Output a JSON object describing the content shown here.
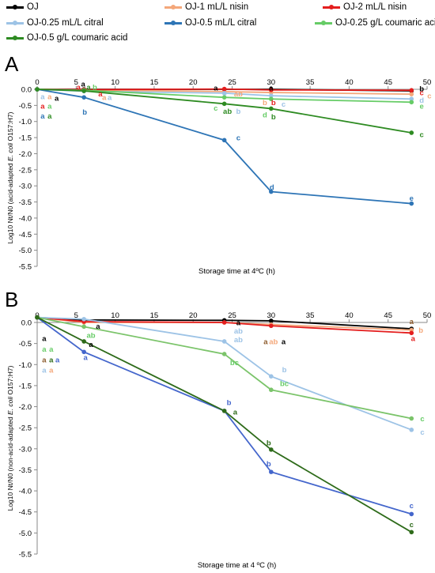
{
  "legend": [
    {
      "name": "OJ",
      "color": "#000000"
    },
    {
      "name": "OJ-1 mL/L nisin",
      "color": "#f4a77a"
    },
    {
      "name": "OJ-2 mL/L nisin",
      "color": "#e41e1e"
    },
    {
      "name": "OJ-0.25 mL/L citral",
      "color": "#9dc3e6"
    },
    {
      "name": "OJ-0.5 mL/L citral",
      "color": "#2e75b6"
    },
    {
      "name": "OJ-0.25 g/L coumaric acid",
      "color": "#66cc66"
    },
    {
      "name": "OJ-0.5 g/L coumaric acid",
      "color": "#2e8b22"
    }
  ],
  "chart_data": [
    {
      "type": "line",
      "panel_label": "A",
      "xlabel": "Storage time at 4ºC (h)",
      "ylabel_parts": [
        "Log10 Nt/N0 (acid-adapted ",
        "E. coli",
        " O157:H7)"
      ],
      "xlim": [
        0,
        50
      ],
      "ylim": [
        -5.5,
        0
      ],
      "xticks": [
        0,
        5,
        10,
        15,
        20,
        25,
        30,
        35,
        40,
        45,
        50
      ],
      "yticks": [
        0.0,
        -0.5,
        -1.0,
        -1.5,
        -2.0,
        -2.5,
        -3.0,
        -3.5,
        -4.0,
        -4.5,
        -5.0,
        -5.5
      ],
      "x": [
        0,
        6,
        24,
        30,
        48
      ],
      "series": [
        {
          "name": "OJ",
          "color": "#000000",
          "values": [
            0.0,
            0.0,
            0.0,
            0.0,
            -0.05
          ]
        },
        {
          "name": "OJ-1 mL/L nisin",
          "color": "#f4a77a",
          "values": [
            0.0,
            -0.02,
            -0.07,
            -0.1,
            -0.15
          ]
        },
        {
          "name": "OJ-2 mL/L nisin",
          "color": "#e41e1e",
          "values": [
            0.0,
            -0.01,
            0.01,
            -0.02,
            -0.03
          ]
        },
        {
          "name": "OJ-0.25 mL/L citral",
          "color": "#9dc3e6",
          "values": [
            0.0,
            -0.06,
            -0.12,
            -0.2,
            -0.3
          ]
        },
        {
          "name": "OJ-0.5 mL/L citral",
          "color": "#2e75b6",
          "values": [
            0.0,
            -0.25,
            -1.58,
            -3.18,
            -3.55
          ]
        },
        {
          "name": "OJ-0.25 g/L coumaric acid",
          "color": "#66cc66",
          "values": [
            0.0,
            -0.03,
            -0.25,
            -0.3,
            -0.4
          ]
        },
        {
          "name": "OJ-0.5 g/L coumaric acid",
          "color": "#2e8b22",
          "values": [
            0.0,
            -0.05,
            -0.45,
            -0.6,
            -1.35
          ]
        }
      ],
      "annotations": [
        {
          "x": 0.7,
          "y": -0.22,
          "text": "a",
          "color": "#9dc3e6"
        },
        {
          "x": 1.6,
          "y": -0.22,
          "text": "a",
          "color": "#f4a77a"
        },
        {
          "x": 2.5,
          "y": -0.27,
          "text": "a",
          "color": "#000000"
        },
        {
          "x": 0.7,
          "y": -0.52,
          "text": "a",
          "color": "#e41e1e"
        },
        {
          "x": 1.6,
          "y": -0.52,
          "text": "a",
          "color": "#66cc66"
        },
        {
          "x": 0.7,
          "y": -0.82,
          "text": "a",
          "color": "#2e75b6"
        },
        {
          "x": 1.6,
          "y": -0.82,
          "text": "a",
          "color": "#2e8b22"
        },
        {
          "x": 5.9,
          "y": 0.17,
          "text": "a",
          "color": "#000000"
        },
        {
          "x": 5.3,
          "y": 0.07,
          "text": "a",
          "color": "#e41e1e"
        },
        {
          "x": 6.6,
          "y": 0.07,
          "text": "a",
          "color": "#2e8b22"
        },
        {
          "x": 7.4,
          "y": 0.07,
          "text": "b",
          "color": "#66cc66"
        },
        {
          "x": 8.1,
          "y": -0.13,
          "text": "a",
          "color": "#e41e1e"
        },
        {
          "x": 8.6,
          "y": -0.25,
          "text": "a",
          "color": "#f4a77a"
        },
        {
          "x": 9.3,
          "y": -0.25,
          "text": "a",
          "color": "#9dc3e6"
        },
        {
          "x": 6.1,
          "y": -0.7,
          "text": "b",
          "color": "#2e75b6"
        },
        {
          "x": 22.9,
          "y": 0.05,
          "text": "a",
          "color": "#000000"
        },
        {
          "x": 24.0,
          "y": -0.1,
          "text": "a",
          "color": "#9dc3e6"
        },
        {
          "x": 25.8,
          "y": -0.13,
          "text": "ab",
          "color": "#f4a77a"
        },
        {
          "x": 22.9,
          "y": -0.58,
          "text": "c",
          "color": "#66cc66"
        },
        {
          "x": 24.4,
          "y": -0.68,
          "text": "ab",
          "color": "#2e8b22"
        },
        {
          "x": 25.8,
          "y": -0.68,
          "text": "b",
          "color": "#9dc3e6"
        },
        {
          "x": 25.8,
          "y": -1.5,
          "text": "c",
          "color": "#2e75b6"
        },
        {
          "x": 30.0,
          "y": 0.05,
          "text": "a",
          "color": "#000000"
        },
        {
          "x": 29.2,
          "y": -0.4,
          "text": "b",
          "color": "#f4a77a"
        },
        {
          "x": 30.3,
          "y": -0.4,
          "text": "b",
          "color": "#e41e1e"
        },
        {
          "x": 31.6,
          "y": -0.46,
          "text": "c",
          "color": "#9dc3e6"
        },
        {
          "x": 29.2,
          "y": -0.78,
          "text": "d",
          "color": "#66cc66"
        },
        {
          "x": 30.3,
          "y": -0.85,
          "text": "b",
          "color": "#2e8b22"
        },
        {
          "x": 30.1,
          "y": -3.03,
          "text": "d",
          "color": "#2e75b6"
        },
        {
          "x": 49.3,
          "y": 0.02,
          "text": "b",
          "color": "#000000"
        },
        {
          "x": 49.3,
          "y": -0.1,
          "text": "c",
          "color": "#e41e1e"
        },
        {
          "x": 50.3,
          "y": -0.2,
          "text": "c",
          "color": "#f4a77a"
        },
        {
          "x": 49.3,
          "y": -0.33,
          "text": "d",
          "color": "#9dc3e6"
        },
        {
          "x": 49.3,
          "y": -0.52,
          "text": "e",
          "color": "#66cc66"
        },
        {
          "x": 49.3,
          "y": -1.4,
          "text": "c",
          "color": "#2e8b22"
        },
        {
          "x": 48.0,
          "y": -3.38,
          "text": "e",
          "color": "#2e75b6"
        }
      ]
    },
    {
      "type": "line",
      "panel_label": "B",
      "xlabel": "Storage time at 4 ºC (h)",
      "ylabel_parts": [
        "Log10 Nt/N0 (non-acid-adapted ",
        "E. coli",
        " O157:H7)"
      ],
      "xlim": [
        0,
        50
      ],
      "ylim": [
        -5.5,
        0
      ],
      "xticks": [
        0,
        5,
        10,
        15,
        20,
        25,
        30,
        35,
        40,
        45,
        50
      ],
      "yticks": [
        0.0,
        -0.5,
        -1.0,
        -1.5,
        -2.0,
        -2.5,
        -3.0,
        -3.5,
        -4.0,
        -4.5,
        -5.0,
        -5.5
      ],
      "x": [
        0,
        6,
        24,
        30,
        48
      ],
      "series": [
        {
          "name": "OJ",
          "color": "#000000",
          "values": [
            0.12,
            0.06,
            0.05,
            0.04,
            -0.15
          ]
        },
        {
          "name": "OJ-1 mL/L nisin",
          "color": "#f4a77a",
          "values": [
            0.12,
            0.0,
            0.0,
            -0.05,
            -0.18
          ]
        },
        {
          "name": "OJ-2 mL/L nisin",
          "color": "#e41e1e",
          "values": [
            0.12,
            0.02,
            0.0,
            -0.08,
            -0.25
          ]
        },
        {
          "name": "OJ-0.25 mL/L citral",
          "color": "#9dc3e6",
          "values": [
            0.12,
            0.08,
            -0.45,
            -1.28,
            -2.55
          ]
        },
        {
          "name": "OJ-0.5 mL/L citral",
          "color": "#4466cc",
          "values": [
            0.12,
            -0.7,
            -2.1,
            -3.55,
            -4.55
          ]
        },
        {
          "name": "OJ-0.25 g/L coumaric acid",
          "color": "#7bc46a",
          "values": [
            0.12,
            -0.1,
            -0.75,
            -1.6,
            -2.28
          ]
        },
        {
          "name": "OJ-0.5 g/L coumaric acid",
          "color": "#2e6b1a",
          "values": [
            0.12,
            -0.45,
            -2.1,
            -3.02,
            -4.98
          ]
        }
      ],
      "annotations": [
        {
          "x": 0.9,
          "y": -0.38,
          "text": "a",
          "color": "#000000"
        },
        {
          "x": 0.9,
          "y": -0.63,
          "text": "a",
          "color": "#66cc66"
        },
        {
          "x": 1.8,
          "y": -0.63,
          "text": "a",
          "color": "#66cc66"
        },
        {
          "x": 0.9,
          "y": -0.88,
          "text": "a",
          "color": "#8b5a2b"
        },
        {
          "x": 1.8,
          "y": -0.88,
          "text": "a",
          "color": "#2e6b1a"
        },
        {
          "x": 0.9,
          "y": -0.88,
          "text": "",
          "color": "#000000"
        },
        {
          "x": 2.6,
          "y": -0.88,
          "text": "a",
          "color": "#4466cc"
        },
        {
          "x": 0.9,
          "y": -1.13,
          "text": "a",
          "color": "#9dc3e6"
        },
        {
          "x": 1.8,
          "y": -1.13,
          "text": "a",
          "color": "#f4a77a"
        },
        {
          "x": 7.8,
          "y": -0.08,
          "text": "a",
          "color": "#000000"
        },
        {
          "x": 6.9,
          "y": -0.3,
          "text": "ab",
          "color": "#66cc66"
        },
        {
          "x": 6.9,
          "y": -0.52,
          "text": "a",
          "color": "#000000"
        },
        {
          "x": 6.2,
          "y": -0.83,
          "text": "a",
          "color": "#4466cc"
        },
        {
          "x": 25.8,
          "y": 0.0,
          "text": "a",
          "color": "#000000"
        },
        {
          "x": 25.8,
          "y": -0.2,
          "text": "ab",
          "color": "#9dc3e6"
        },
        {
          "x": 25.8,
          "y": -0.4,
          "text": "ab",
          "color": "#9dc3e6"
        },
        {
          "x": 25.3,
          "y": -0.95,
          "text": "bc",
          "color": "#66cc66"
        },
        {
          "x": 24.6,
          "y": -1.9,
          "text": "b",
          "color": "#4466cc"
        },
        {
          "x": 25.4,
          "y": -2.12,
          "text": "a",
          "color": "#2e6b1a"
        },
        {
          "x": 29.3,
          "y": -0.45,
          "text": "a",
          "color": "#8b5a2b"
        },
        {
          "x": 30.3,
          "y": -0.45,
          "text": "ab",
          "color": "#f4a77a"
        },
        {
          "x": 31.6,
          "y": -0.45,
          "text": "a",
          "color": "#000000"
        },
        {
          "x": 31.7,
          "y": -1.12,
          "text": "b",
          "color": "#9dc3e6"
        },
        {
          "x": 31.7,
          "y": -1.45,
          "text": "bc",
          "color": "#66cc66"
        },
        {
          "x": 29.7,
          "y": -2.85,
          "text": "b",
          "color": "#2e6b1a"
        },
        {
          "x": 29.7,
          "y": -3.35,
          "text": "b",
          "color": "#4466cc"
        },
        {
          "x": 48.0,
          "y": 0.03,
          "text": "a",
          "color": "#8b5a2b"
        },
        {
          "x": 49.2,
          "y": -0.18,
          "text": "b",
          "color": "#f4a77a"
        },
        {
          "x": 48.2,
          "y": -0.38,
          "text": "a",
          "color": "#e41e1e"
        },
        {
          "x": 49.4,
          "y": -2.28,
          "text": "c",
          "color": "#66cc66"
        },
        {
          "x": 49.4,
          "y": -2.6,
          "text": "c",
          "color": "#9dc3e6"
        },
        {
          "x": 48.0,
          "y": -4.35,
          "text": "c",
          "color": "#4466cc"
        },
        {
          "x": 48.0,
          "y": -4.8,
          "text": "c",
          "color": "#2e6b1a"
        }
      ]
    }
  ]
}
